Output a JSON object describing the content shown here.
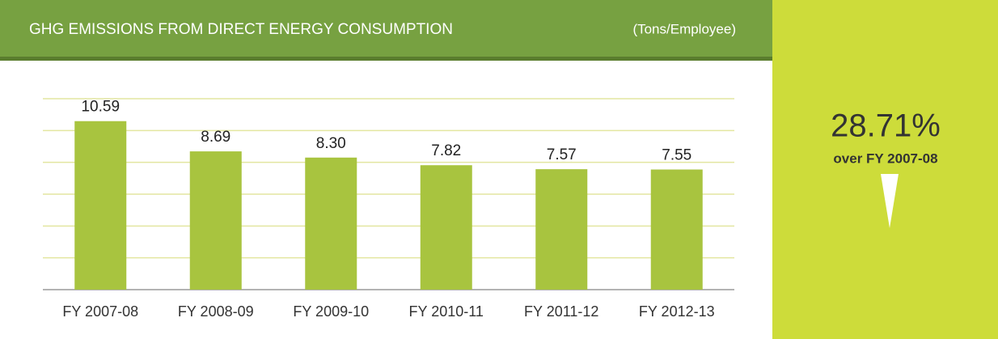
{
  "chart_data": {
    "type": "bar",
    "title": "GHG EMISSIONS FROM DIRECT ENERGY CONSUMPTION",
    "subtitle": "(Tons/Employee)",
    "categories": [
      "FY 2007-08",
      "FY 2008-09",
      "FY 2009-10",
      "FY 2010-11",
      "FY 2011-12",
      "FY 2012-13"
    ],
    "values": [
      10.59,
      8.69,
      8.3,
      7.82,
      7.57,
      7.55
    ],
    "value_labels": [
      "10.59",
      "8.69",
      "8.30",
      "7.82",
      "7.57",
      "7.55"
    ],
    "color": "#a8c43f",
    "ylim": [
      0,
      12
    ],
    "yticks": [
      0,
      2,
      4,
      6,
      8,
      10,
      12
    ],
    "grid": true,
    "highlight": {
      "value": "28.71%",
      "caption": "over FY 2007-08"
    }
  }
}
